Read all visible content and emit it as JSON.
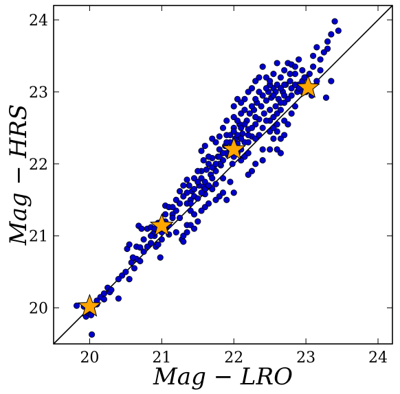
{
  "chart_data": {
    "type": "scatter",
    "xlabel": "Mag − LRO",
    "ylabel": "Mag − HRS",
    "xlim": [
      19.5,
      24.2
    ],
    "ylim": [
      19.5,
      24.2
    ],
    "xticks": [
      20,
      21,
      22,
      23,
      24
    ],
    "yticks": [
      20,
      21,
      22,
      23,
      24
    ],
    "reference_line": {
      "from": [
        19.5,
        19.5
      ],
      "to": [
        24.2,
        24.2
      ],
      "color": "#000000"
    },
    "series": [
      {
        "marker": "circle",
        "color": "#0000cc",
        "points": [
          [
            19.82,
            20.03
          ],
          [
            19.92,
            20.02
          ],
          [
            19.95,
            19.88
          ],
          [
            19.98,
            19.93
          ],
          [
            20.02,
            19.9
          ],
          [
            20.03,
            19.63
          ],
          [
            20.1,
            20.05
          ],
          [
            20.15,
            20.15
          ],
          [
            20.2,
            20.2
          ],
          [
            20.25,
            20.28
          ],
          [
            20.28,
            20.22
          ],
          [
            20.4,
            20.13
          ],
          [
            20.45,
            20.45
          ],
          [
            20.5,
            20.5
          ],
          [
            20.55,
            20.4
          ],
          [
            20.58,
            20.63
          ],
          [
            20.62,
            20.55
          ],
          [
            20.65,
            20.68
          ],
          [
            20.52,
            20.82
          ],
          [
            20.55,
            20.88
          ],
          [
            20.7,
            20.65
          ],
          [
            20.75,
            20.78
          ],
          [
            20.65,
            20.85
          ],
          [
            20.7,
            20.84
          ],
          [
            20.8,
            20.85
          ],
          [
            20.85,
            20.9
          ],
          [
            20.9,
            21.0
          ],
          [
            20.92,
            20.85
          ],
          [
            20.98,
            20.7
          ],
          [
            20.95,
            21.18
          ],
          [
            20.88,
            21.03
          ],
          [
            20.8,
            21.1
          ],
          [
            20.85,
            21.12
          ],
          [
            20.68,
            21.14
          ],
          [
            20.72,
            21.1
          ],
          [
            21.0,
            21.05
          ],
          [
            21.05,
            21.2
          ],
          [
            21.05,
            21.42
          ],
          [
            21.1,
            21.4
          ],
          [
            21.15,
            21.3
          ],
          [
            21.2,
            21.35
          ],
          [
            21.25,
            21.25
          ],
          [
            21.28,
            20.95
          ],
          [
            21.3,
            20.92
          ],
          [
            21.35,
            21.15
          ],
          [
            21.35,
            21.45
          ],
          [
            21.4,
            21.5
          ],
          [
            21.42,
            21.62
          ],
          [
            21.38,
            21.7
          ],
          [
            21.45,
            21.55
          ],
          [
            21.5,
            21.52
          ],
          [
            21.52,
            21.7
          ],
          [
            21.55,
            21.8
          ],
          [
            21.58,
            21.68
          ],
          [
            21.6,
            21.58
          ],
          [
            21.62,
            21.92
          ],
          [
            21.65,
            22.0
          ],
          [
            21.68,
            21.85
          ],
          [
            21.7,
            22.08
          ],
          [
            21.72,
            21.95
          ],
          [
            21.75,
            21.72
          ],
          [
            21.78,
            22.1
          ],
          [
            21.8,
            22.2
          ],
          [
            21.82,
            21.98
          ],
          [
            21.85,
            22.05
          ],
          [
            21.88,
            22.25
          ],
          [
            21.9,
            22.4
          ],
          [
            21.92,
            22.12
          ],
          [
            21.95,
            22.3
          ],
          [
            21.98,
            22.0
          ],
          [
            22.0,
            22.5
          ],
          [
            22.02,
            22.35
          ],
          [
            22.05,
            22.28
          ],
          [
            22.08,
            22.55
          ],
          [
            22.1,
            22.2
          ],
          [
            22.12,
            22.42
          ],
          [
            22.15,
            22.3
          ],
          [
            22.18,
            22.6
          ],
          [
            22.2,
            22.48
          ],
          [
            22.22,
            22.7
          ],
          [
            22.25,
            22.38
          ],
          [
            22.28,
            22.75
          ],
          [
            22.3,
            22.55
          ],
          [
            22.32,
            22.85
          ],
          [
            22.35,
            22.62
          ],
          [
            22.38,
            22.8
          ],
          [
            22.4,
            22.95
          ],
          [
            22.42,
            22.7
          ],
          [
            22.45,
            22.88
          ],
          [
            22.48,
            23.0
          ],
          [
            22.5,
            22.75
          ],
          [
            22.52,
            22.92
          ],
          [
            22.55,
            23.05
          ],
          [
            22.58,
            22.8
          ],
          [
            22.6,
            23.1
          ],
          [
            22.62,
            22.9
          ],
          [
            22.65,
            23.2
          ],
          [
            22.68,
            23.0
          ],
          [
            22.7,
            23.3
          ],
          [
            22.72,
            23.1
          ],
          [
            22.75,
            23.4
          ],
          [
            22.78,
            23.15
          ],
          [
            22.8,
            23.38
          ],
          [
            22.85,
            23.25
          ],
          [
            22.88,
            23.0
          ],
          [
            22.9,
            23.1
          ],
          [
            22.95,
            23.3
          ],
          [
            23.0,
            23.2
          ],
          [
            23.05,
            23.05
          ],
          [
            23.08,
            22.95
          ],
          [
            23.1,
            23.5
          ],
          [
            23.15,
            23.62
          ],
          [
            23.2,
            23.45
          ],
          [
            23.25,
            23.55
          ],
          [
            23.3,
            23.7
          ],
          [
            23.35,
            23.8
          ],
          [
            23.28,
            22.92
          ],
          [
            23.35,
            23.15
          ],
          [
            23.4,
            23.98
          ],
          [
            23.45,
            23.85
          ],
          [
            22.5,
            22.2
          ],
          [
            22.55,
            22.35
          ],
          [
            22.6,
            22.2
          ],
          [
            22.4,
            22.05
          ],
          [
            22.3,
            22.0
          ],
          [
            22.25,
            21.9
          ],
          [
            22.2,
            21.85
          ],
          [
            22.15,
            22.1
          ],
          [
            22.0,
            21.6
          ],
          [
            21.9,
            21.5
          ],
          [
            21.8,
            21.55
          ],
          [
            21.7,
            21.65
          ],
          [
            21.6,
            21.4
          ],
          [
            21.5,
            21.2
          ],
          [
            21.4,
            21.15
          ],
          [
            21.3,
            21.0
          ],
          [
            21.2,
            21.05
          ],
          [
            21.1,
            21.02
          ],
          [
            21.0,
            20.95
          ],
          [
            20.95,
            20.88
          ],
          [
            21.55,
            21.9
          ],
          [
            21.58,
            22.05
          ],
          [
            21.65,
            22.1
          ],
          [
            21.75,
            22.3
          ],
          [
            21.8,
            22.38
          ],
          [
            21.85,
            22.5
          ],
          [
            21.9,
            22.6
          ],
          [
            22.0,
            22.8
          ],
          [
            22.05,
            22.9
          ],
          [
            22.1,
            22.7
          ],
          [
            22.15,
            22.9
          ],
          [
            22.2,
            23.0
          ],
          [
            22.25,
            23.05
          ],
          [
            22.3,
            23.15
          ],
          [
            22.35,
            23.2
          ],
          [
            22.4,
            23.35
          ],
          [
            22.45,
            23.2
          ],
          [
            22.5,
            23.1
          ],
          [
            22.55,
            23.25
          ],
          [
            22.6,
            23.4
          ],
          [
            21.2,
            21.5
          ],
          [
            21.25,
            21.62
          ],
          [
            21.3,
            21.7
          ],
          [
            21.35,
            21.78
          ],
          [
            21.45,
            21.8
          ],
          [
            21.5,
            21.9
          ],
          [
            21.4,
            21.35
          ],
          [
            21.45,
            21.3
          ],
          [
            21.6,
            21.65
          ],
          [
            21.7,
            21.8
          ],
          [
            21.75,
            21.9
          ],
          [
            21.8,
            22.0
          ],
          [
            21.85,
            21.8
          ],
          [
            21.9,
            22.15
          ],
          [
            21.95,
            22.2
          ],
          [
            22.0,
            22.1
          ],
          [
            22.05,
            22.15
          ],
          [
            22.1,
            22.05
          ],
          [
            22.2,
            22.3
          ],
          [
            22.3,
            22.35
          ],
          [
            22.4,
            22.5
          ],
          [
            22.5,
            22.6
          ],
          [
            22.55,
            22.65
          ],
          [
            22.6,
            22.7
          ],
          [
            22.65,
            22.75
          ],
          [
            22.7,
            22.85
          ],
          [
            22.75,
            22.9
          ],
          [
            22.8,
            22.95
          ],
          [
            22.9,
            23.05
          ],
          [
            22.95,
            23.0
          ],
          [
            22.65,
            22.15
          ],
          [
            22.6,
            22.45
          ],
          [
            22.7,
            22.6
          ],
          [
            22.75,
            22.55
          ],
          [
            22.8,
            22.7
          ],
          [
            22.85,
            22.8
          ],
          [
            22.7,
            22.95
          ],
          [
            22.65,
            23.05
          ],
          [
            23.05,
            23.25
          ],
          [
            23.15,
            23.15
          ],
          [
            21.15,
            21.25
          ],
          [
            21.05,
            21.1
          ],
          [
            20.9,
            21.1
          ],
          [
            21.0,
            21.2
          ],
          [
            21.05,
            21.3
          ],
          [
            21.1,
            21.15
          ],
          [
            21.15,
            21.4
          ],
          [
            21.25,
            21.45
          ],
          [
            21.3,
            21.55
          ],
          [
            21.35,
            21.6
          ],
          [
            21.4,
            21.45
          ],
          [
            21.45,
            21.65
          ],
          [
            21.5,
            21.75
          ],
          [
            21.55,
            21.6
          ],
          [
            21.6,
            21.75
          ],
          [
            21.65,
            21.7
          ],
          [
            21.7,
            21.95
          ],
          [
            21.75,
            22.0
          ],
          [
            21.8,
            22.1
          ],
          [
            21.85,
            22.15
          ],
          [
            21.9,
            22.3
          ],
          [
            21.95,
            22.4
          ],
          [
            22.0,
            22.45
          ],
          [
            22.05,
            22.4
          ],
          [
            22.1,
            22.5
          ],
          [
            22.15,
            22.55
          ],
          [
            22.2,
            22.4
          ],
          [
            22.25,
            22.5
          ],
          [
            22.3,
            22.65
          ],
          [
            22.35,
            22.4
          ],
          [
            22.45,
            22.6
          ],
          [
            22.5,
            22.45
          ],
          [
            22.55,
            22.5
          ],
          [
            22.6,
            22.55
          ],
          [
            22.65,
            22.35
          ],
          [
            22.7,
            22.4
          ],
          [
            22.8,
            23.05
          ],
          [
            22.85,
            23.1
          ],
          [
            22.95,
            23.15
          ],
          [
            23.0,
            23.0
          ],
          [
            20.85,
            21.0
          ],
          [
            20.75,
            20.95
          ],
          [
            20.6,
            20.7
          ],
          [
            20.4,
            20.4
          ],
          [
            20.3,
            20.25
          ],
          [
            20.2,
            20.12
          ],
          [
            20.1,
            20.1
          ],
          [
            21.55,
            22.18
          ],
          [
            21.6,
            22.25
          ],
          [
            21.7,
            22.35
          ],
          [
            22.0,
            22.65
          ],
          [
            22.05,
            22.6
          ],
          [
            22.1,
            22.85
          ],
          [
            22.15,
            22.75
          ],
          [
            22.25,
            22.8
          ],
          [
            22.3,
            22.9
          ],
          [
            22.35,
            23.0
          ],
          [
            22.45,
            23.05
          ],
          [
            22.5,
            23.15
          ],
          [
            22.58,
            23.0
          ],
          [
            22.4,
            22.2
          ],
          [
            22.2,
            22.15
          ],
          [
            22.1,
            22.35
          ],
          [
            21.95,
            21.75
          ],
          [
            21.85,
            21.6
          ],
          [
            21.75,
            21.5
          ],
          [
            21.65,
            21.45
          ],
          [
            21.55,
            21.35
          ],
          [
            21.45,
            21.1
          ],
          [
            21.35,
            21.05
          ],
          [
            22.7,
            23.1
          ],
          [
            22.78,
            23.25
          ],
          [
            22.85,
            23.35
          ],
          [
            22.9,
            23.45
          ],
          [
            22.98,
            23.2
          ],
          [
            23.1,
            23.35
          ],
          [
            23.2,
            23.3
          ],
          [
            23.3,
            23.6
          ],
          [
            22.65,
            22.85
          ],
          [
            22.55,
            22.95
          ]
        ]
      },
      {
        "marker": "star",
        "color": "#ffa500",
        "points": [
          [
            20.0,
            20.02
          ],
          [
            21.0,
            21.14
          ],
          [
            22.0,
            22.2
          ],
          [
            23.03,
            23.06
          ]
        ]
      }
    ]
  }
}
